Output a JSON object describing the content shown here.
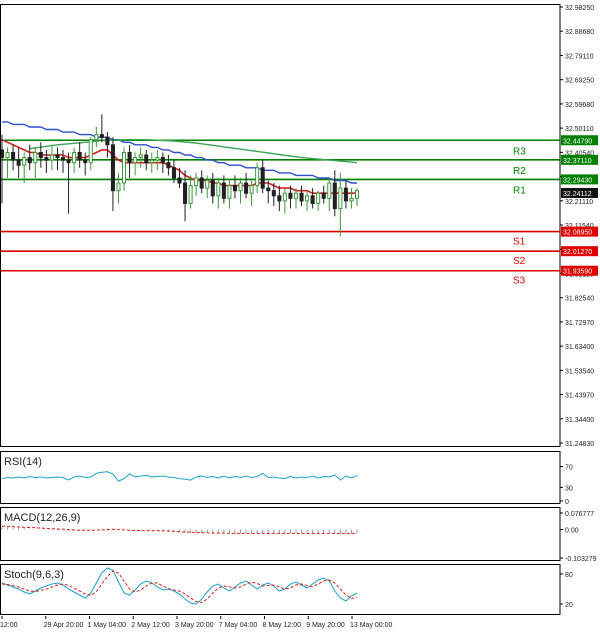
{
  "colors": {
    "background": "#ffffff",
    "frame": "#000000",
    "resistance": "#008000",
    "support": "#e00000",
    "bull_candle": "#3c9a3c",
    "bear_candle": "#202020",
    "ma_fast": "#d21f1f",
    "ma_mid": "#2f4fd1",
    "ma_slow": "#3aa657",
    "osc_line": "#1aa3c9",
    "signal_line": "#d21f1f",
    "price_tag": "#111111",
    "axis_text": "#222222"
  },
  "chart_data": {
    "type": "candlestick",
    "price_axis": {
      "ticks": [
        "32.98250",
        "32.88680",
        "32.79110",
        "32.69250",
        "32.59680",
        "32.50110",
        "32.40540",
        "32.30680",
        "32.21110",
        "32.11540",
        "32.01270",
        "31.92110",
        "31.82540",
        "31.72970",
        "31.63400",
        "31.53540",
        "31.43970",
        "31.34400",
        "31.24830"
      ],
      "range": [
        31.2483,
        32.9825
      ]
    },
    "time_axis": {
      "labels": [
        "12:00",
        "29 Apr 20:00",
        "1 May 04:00",
        "2 May 12:00",
        "3 May 20:00",
        "7 May 04:00",
        "8 May 12:00",
        "9 May 20:00",
        "13 May 00:00"
      ]
    },
    "levels": [
      {
        "name": "R3",
        "value": 32.4479,
        "label": "32.44790",
        "kind": "resistance"
      },
      {
        "name": "R2",
        "value": 32.3711,
        "label": "32.37110",
        "kind": "resistance"
      },
      {
        "name": "R1",
        "value": 32.2943,
        "label": "32.29430",
        "kind": "resistance"
      },
      {
        "name": "S1",
        "value": 32.0895,
        "label": "32.08950",
        "kind": "support"
      },
      {
        "name": "S2",
        "value": 32.0127,
        "label": "32.01270",
        "kind": "support"
      },
      {
        "name": "S3",
        "value": 31.9359,
        "label": "31.93590",
        "kind": "support"
      }
    ],
    "current_price": {
      "value": 32.24112,
      "label": "32.24112"
    },
    "candles": [
      {
        "o": 32.41,
        "h": 32.47,
        "l": 32.2,
        "c": 32.38
      },
      {
        "o": 32.38,
        "h": 32.42,
        "l": 32.3,
        "c": 32.4
      },
      {
        "o": 32.4,
        "h": 32.43,
        "l": 32.33,
        "c": 32.37
      },
      {
        "o": 32.37,
        "h": 32.42,
        "l": 32.3,
        "c": 32.35
      },
      {
        "o": 32.35,
        "h": 32.4,
        "l": 32.28,
        "c": 32.38
      },
      {
        "o": 32.38,
        "h": 32.43,
        "l": 32.33,
        "c": 32.36
      },
      {
        "o": 32.36,
        "h": 32.42,
        "l": 32.3,
        "c": 32.4
      },
      {
        "o": 32.4,
        "h": 32.44,
        "l": 32.34,
        "c": 32.38
      },
      {
        "o": 32.38,
        "h": 32.41,
        "l": 32.32,
        "c": 32.37
      },
      {
        "o": 32.37,
        "h": 32.43,
        "l": 32.33,
        "c": 32.39
      },
      {
        "o": 32.39,
        "h": 32.42,
        "l": 32.33,
        "c": 32.38
      },
      {
        "o": 32.38,
        "h": 32.41,
        "l": 32.32,
        "c": 32.37
      },
      {
        "o": 32.37,
        "h": 32.4,
        "l": 32.16,
        "c": 32.36
      },
      {
        "o": 32.36,
        "h": 32.42,
        "l": 32.32,
        "c": 32.4
      },
      {
        "o": 32.4,
        "h": 32.44,
        "l": 32.34,
        "c": 32.37
      },
      {
        "o": 32.37,
        "h": 32.4,
        "l": 32.31,
        "c": 32.36
      },
      {
        "o": 32.36,
        "h": 32.46,
        "l": 32.33,
        "c": 32.45
      },
      {
        "o": 32.45,
        "h": 32.5,
        "l": 32.42,
        "c": 32.47
      },
      {
        "o": 32.47,
        "h": 32.55,
        "l": 32.44,
        "c": 32.46
      },
      {
        "o": 32.46,
        "h": 32.48,
        "l": 32.38,
        "c": 32.43
      },
      {
        "o": 32.43,
        "h": 32.46,
        "l": 32.17,
        "c": 32.25
      },
      {
        "o": 32.25,
        "h": 32.32,
        "l": 32.2,
        "c": 32.28
      },
      {
        "o": 32.28,
        "h": 32.42,
        "l": 32.25,
        "c": 32.4
      },
      {
        "o": 32.4,
        "h": 32.43,
        "l": 32.3,
        "c": 32.36
      },
      {
        "o": 32.36,
        "h": 32.4,
        "l": 32.31,
        "c": 32.38
      },
      {
        "o": 32.38,
        "h": 32.42,
        "l": 32.34,
        "c": 32.39
      },
      {
        "o": 32.39,
        "h": 32.41,
        "l": 32.33,
        "c": 32.36
      },
      {
        "o": 32.36,
        "h": 32.4,
        "l": 32.32,
        "c": 32.37
      },
      {
        "o": 32.37,
        "h": 32.41,
        "l": 32.33,
        "c": 32.38
      },
      {
        "o": 32.38,
        "h": 32.4,
        "l": 32.32,
        "c": 32.36
      },
      {
        "o": 32.36,
        "h": 32.39,
        "l": 32.31,
        "c": 32.34
      },
      {
        "o": 32.34,
        "h": 32.37,
        "l": 32.28,
        "c": 32.3
      },
      {
        "o": 32.3,
        "h": 32.34,
        "l": 32.26,
        "c": 32.28
      },
      {
        "o": 32.28,
        "h": 32.33,
        "l": 32.13,
        "c": 32.2
      },
      {
        "o": 32.2,
        "h": 32.31,
        "l": 32.18,
        "c": 32.27
      },
      {
        "o": 32.27,
        "h": 32.32,
        "l": 32.23,
        "c": 32.3
      },
      {
        "o": 32.3,
        "h": 32.33,
        "l": 32.24,
        "c": 32.26
      },
      {
        "o": 32.26,
        "h": 32.31,
        "l": 32.22,
        "c": 32.29
      },
      {
        "o": 32.29,
        "h": 32.32,
        "l": 32.2,
        "c": 32.23
      },
      {
        "o": 32.23,
        "h": 32.3,
        "l": 32.18,
        "c": 32.28
      },
      {
        "o": 32.28,
        "h": 32.31,
        "l": 32.2,
        "c": 32.22
      },
      {
        "o": 32.22,
        "h": 32.29,
        "l": 32.18,
        "c": 32.27
      },
      {
        "o": 32.27,
        "h": 32.31,
        "l": 32.22,
        "c": 32.25
      },
      {
        "o": 32.25,
        "h": 32.3,
        "l": 32.2,
        "c": 32.28
      },
      {
        "o": 32.28,
        "h": 32.32,
        "l": 32.22,
        "c": 32.24
      },
      {
        "o": 32.24,
        "h": 32.29,
        "l": 32.19,
        "c": 32.27
      },
      {
        "o": 32.27,
        "h": 32.36,
        "l": 32.24,
        "c": 32.34
      },
      {
        "o": 32.34,
        "h": 32.37,
        "l": 32.24,
        "c": 32.26
      },
      {
        "o": 32.26,
        "h": 32.29,
        "l": 32.2,
        "c": 32.25
      },
      {
        "o": 32.25,
        "h": 32.28,
        "l": 32.19,
        "c": 32.23
      },
      {
        "o": 32.23,
        "h": 32.27,
        "l": 32.17,
        "c": 32.21
      },
      {
        "o": 32.21,
        "h": 32.26,
        "l": 32.16,
        "c": 32.24
      },
      {
        "o": 32.24,
        "h": 32.27,
        "l": 32.18,
        "c": 32.22
      },
      {
        "o": 32.22,
        "h": 32.26,
        "l": 32.18,
        "c": 32.24
      },
      {
        "o": 32.24,
        "h": 32.27,
        "l": 32.19,
        "c": 32.21
      },
      {
        "o": 32.21,
        "h": 32.25,
        "l": 32.17,
        "c": 32.23
      },
      {
        "o": 32.23,
        "h": 32.26,
        "l": 32.18,
        "c": 32.2
      },
      {
        "o": 32.2,
        "h": 32.25,
        "l": 32.17,
        "c": 32.24
      },
      {
        "o": 32.24,
        "h": 32.27,
        "l": 32.2,
        "c": 32.22
      },
      {
        "o": 32.22,
        "h": 32.3,
        "l": 32.17,
        "c": 32.28
      },
      {
        "o": 32.28,
        "h": 32.33,
        "l": 32.15,
        "c": 32.18
      },
      {
        "o": 32.18,
        "h": 32.32,
        "l": 32.07,
        "c": 32.26
      },
      {
        "o": 32.26,
        "h": 32.29,
        "l": 32.18,
        "c": 32.21
      },
      {
        "o": 32.21,
        "h": 32.26,
        "l": 32.18,
        "c": 32.22
      },
      {
        "o": 32.22,
        "h": 32.26,
        "l": 32.19,
        "c": 32.25
      }
    ],
    "moving_averages": [
      {
        "key": "ma_fast",
        "values": [
          32.45,
          32.44,
          32.43,
          32.42,
          32.41,
          32.4,
          32.4,
          32.39,
          32.39,
          32.39,
          32.39,
          32.39,
          32.38,
          32.38,
          32.38,
          32.38,
          32.39,
          32.4,
          32.41,
          32.41,
          32.39,
          32.37,
          32.36,
          32.36,
          32.36,
          32.36,
          32.36,
          32.36,
          32.36,
          32.36,
          32.35,
          32.34,
          32.33,
          32.31,
          32.3,
          32.29,
          32.29,
          32.29,
          32.28,
          32.28,
          32.27,
          32.27,
          32.27,
          32.27,
          32.27,
          32.27,
          32.28,
          32.28,
          32.28,
          32.27,
          32.26,
          32.26,
          32.26,
          32.25,
          32.25,
          32.25,
          32.24,
          32.24,
          32.24,
          32.24,
          32.24,
          32.24,
          32.24,
          32.24,
          32.24
        ]
      },
      {
        "key": "ma_mid",
        "values": [
          32.52,
          32.52,
          32.51,
          32.51,
          32.51,
          32.5,
          32.5,
          32.5,
          32.49,
          32.49,
          32.49,
          32.48,
          32.48,
          32.48,
          32.47,
          32.47,
          32.47,
          32.46,
          32.46,
          32.46,
          32.45,
          32.45,
          32.44,
          32.44,
          32.43,
          32.43,
          32.43,
          32.42,
          32.42,
          32.41,
          32.41,
          32.4,
          32.4,
          32.39,
          32.39,
          32.38,
          32.38,
          32.37,
          32.37,
          32.36,
          32.36,
          32.35,
          32.35,
          32.35,
          32.34,
          32.34,
          32.34,
          32.33,
          32.33,
          32.33,
          32.32,
          32.32,
          32.32,
          32.31,
          32.31,
          32.31,
          32.31,
          32.3,
          32.3,
          32.3,
          32.29,
          32.29,
          32.29,
          32.28,
          32.28
        ]
      },
      {
        "key": "ma_slow",
        "values": [
          null,
          null,
          null,
          null,
          null,
          32.415,
          32.418,
          32.421,
          32.424,
          32.427,
          32.43,
          32.432,
          32.434,
          32.436,
          32.438,
          32.44,
          32.442,
          32.444,
          32.446,
          32.447,
          32.448,
          32.449,
          32.45,
          32.45,
          32.45,
          32.45,
          32.45,
          32.449,
          32.448,
          32.447,
          32.446,
          32.445,
          32.443,
          32.441,
          32.439,
          32.437,
          32.434,
          32.431,
          32.428,
          32.425,
          32.422,
          32.419,
          32.416,
          32.413,
          32.41,
          32.407,
          32.404,
          32.401,
          32.398,
          32.395,
          32.392,
          32.389,
          32.386,
          32.383,
          32.38,
          32.378,
          32.376,
          32.374,
          32.372,
          32.37,
          32.368,
          32.366,
          32.364,
          32.362,
          32.36
        ]
      }
    ],
    "indicators": [
      {
        "key": "rsi",
        "title": "RSI(14)",
        "ticks": [
          "70",
          "30",
          "0"
        ],
        "range": [
          0,
          100
        ],
        "lines": [
          {
            "style": "osc",
            "values": [
              47,
              49,
              48,
              50,
              48,
              51,
              49,
              50,
              48,
              49,
              50,
              49,
              44,
              50,
              52,
              49,
              50,
              57,
              59,
              60,
              56,
              42,
              47,
              56,
              50,
              52,
              53,
              50,
              51,
              52,
              50,
              49,
              47,
              46,
              44,
              50,
              52,
              49,
              51,
              48,
              52,
              48,
              51,
              49,
              52,
              49,
              51,
              57,
              49,
              50,
              48,
              47,
              51,
              48,
              50,
              49,
              52,
              48,
              51,
              50,
              54,
              44,
              52,
              48,
              53
            ]
          }
        ]
      },
      {
        "key": "macd",
        "title": "MACD(12,26,9)",
        "ticks": [
          "0.076777",
          "0.00",
          "-0.103279"
        ],
        "range": [
          -0.103279,
          0.076777
        ],
        "histogram": [
          0.01,
          0.008,
          0.007,
          0.006,
          0.004,
          0.003,
          0.002,
          0.001,
          0.0,
          -0.001,
          -0.002,
          -0.002,
          -0.004,
          -0.004,
          -0.003,
          -0.003,
          -0.002,
          0.0,
          0.002,
          0.004,
          0.003,
          -0.001,
          -0.003,
          -0.004,
          -0.004,
          -0.004,
          -0.004,
          -0.004,
          -0.004,
          -0.005,
          -0.006,
          -0.007,
          -0.009,
          -0.011,
          -0.012,
          -0.012,
          -0.012,
          -0.012,
          -0.013,
          -0.013,
          -0.013,
          -0.013,
          -0.013,
          -0.013,
          -0.013,
          -0.013,
          -0.012,
          -0.012,
          -0.012,
          -0.012,
          -0.013,
          -0.013,
          -0.013,
          -0.013,
          -0.013,
          -0.013,
          -0.013,
          -0.013,
          -0.013,
          -0.013,
          -0.013,
          -0.014,
          -0.014,
          -0.014,
          -0.013
        ],
        "lines": [
          {
            "style": "signal",
            "values": [
              0.012,
              0.011,
              0.01,
              0.009,
              0.008,
              0.007,
              0.006,
              0.005,
              0.004,
              0.003,
              0.002,
              0.001,
              0.0,
              -0.001,
              -0.002,
              -0.002,
              -0.002,
              -0.002,
              -0.001,
              0.0,
              0.001,
              0.0,
              -0.001,
              -0.002,
              -0.003,
              -0.003,
              -0.004,
              -0.004,
              -0.004,
              -0.004,
              -0.005,
              -0.006,
              -0.007,
              -0.008,
              -0.009,
              -0.01,
              -0.011,
              -0.011,
              -0.012,
              -0.012,
              -0.012,
              -0.013,
              -0.013,
              -0.013,
              -0.013,
              -0.013,
              -0.013,
              -0.013,
              -0.013,
              -0.013,
              -0.013,
              -0.013,
              -0.013,
              -0.013,
              -0.013,
              -0.013,
              -0.013,
              -0.013,
              -0.013,
              -0.013,
              -0.013,
              -0.013,
              -0.013,
              -0.013,
              -0.013
            ]
          }
        ]
      },
      {
        "key": "stoch",
        "title": "Stoch(9,6,3)",
        "ticks": [
          "80",
          "20"
        ],
        "range": [
          0,
          100
        ],
        "lines": [
          {
            "style": "osc",
            "values": [
              62,
              58,
              54,
              50,
              44,
              40,
              46,
              52,
              56,
              60,
              62,
              58,
              50,
              44,
              38,
              32,
              42,
              62,
              82,
              92,
              88,
              64,
              42,
              38,
              48,
              60,
              66,
              62,
              54,
              48,
              50,
              46,
              40,
              30,
              22,
              20,
              30,
              44,
              56,
              60,
              52,
              46,
              54,
              62,
              66,
              58,
              50,
              58,
              62,
              56,
              46,
              50,
              60,
              64,
              58,
              52,
              60,
              68,
              72,
              66,
              46,
              32,
              26,
              36,
              42
            ]
          },
          {
            "style": "signal",
            "values": [
              60,
              59,
              57,
              54,
              50,
              46,
              45,
              47,
              50,
              54,
              58,
              60,
              57,
              52,
              46,
              40,
              37,
              45,
              60,
              75,
              86,
              82,
              66,
              50,
              44,
              48,
              56,
              62,
              62,
              56,
              51,
              48,
              46,
              40,
              32,
              25,
              23,
              30,
              42,
              52,
              56,
              54,
              52,
              54,
              60,
              64,
              61,
              56,
              57,
              58,
              54,
              50,
              52,
              58,
              60,
              57,
              55,
              60,
              66,
              68,
              62,
              50,
              38,
              31,
              33
            ]
          }
        ]
      }
    ]
  }
}
